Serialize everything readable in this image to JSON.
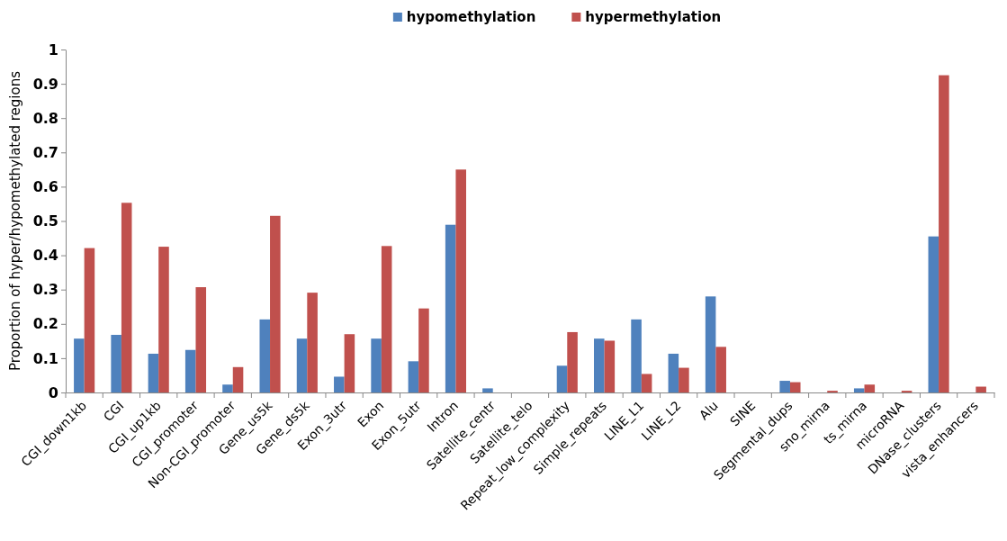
{
  "chart_data": {
    "type": "bar",
    "ylabel": "Proportion of hyper/hypomethylated regions",
    "categories": [
      "CGI_down1kb",
      "CGI",
      "CGI_up1kb",
      "CGI_promoter",
      "Non-CGI_promoter",
      "Gene_us5k",
      "Gene_ds5k",
      "Exon_3utr",
      "Exon",
      "Exon_5utr",
      "Intron",
      "Satellite_centr",
      "Satellite_telo",
      "Repeat_low_complexity",
      "Simple_repeats",
      "LINE_L1",
      "LINE_L2",
      "Alu",
      "SINE",
      "Segmental_dups",
      "sno_mirna",
      "ts_mirna",
      "microRNA",
      "DNase_clusters",
      "vista_enhancers"
    ],
    "series": [
      {
        "name": "hypomethylation",
        "color": "#4f81bd",
        "values": [
          0.157,
          0.168,
          0.113,
          0.124,
          0.023,
          0.213,
          0.157,
          0.046,
          0.157,
          0.091,
          0.489,
          0.012,
          0,
          0.078,
          0.157,
          0.213,
          0.113,
          0.28,
          0,
          0.034,
          0,
          0.012,
          0,
          0.455,
          0
        ]
      },
      {
        "name": "hypermethylation",
        "color": "#c0504d",
        "values": [
          0.421,
          0.553,
          0.425,
          0.307,
          0.074,
          0.515,
          0.291,
          0.17,
          0.427,
          0.245,
          0.65,
          0,
          0,
          0.176,
          0.151,
          0.054,
          0.072,
          0.133,
          0,
          0.03,
          0.005,
          0.023,
          0.005,
          0.925,
          0.017
        ]
      }
    ],
    "ylim": [
      0,
      1
    ],
    "yticks": [
      0,
      0.1,
      0.2,
      0.3,
      0.4,
      0.5,
      0.6,
      0.7,
      0.8,
      0.9,
      1
    ],
    "legend": "top",
    "grid": false
  }
}
